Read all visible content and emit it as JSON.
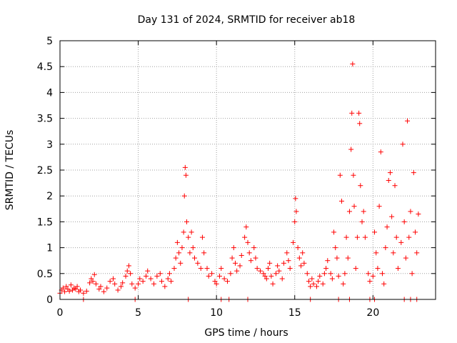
{
  "chart_data": {
    "type": "scatter",
    "title": "Day 131 of 2024, SRMTID for receiver ab18",
    "xlabel": "GPS time / hours",
    "ylabel": "SRMTID / TECUs",
    "xlim": [
      0,
      24
    ],
    "ylim": [
      0,
      5
    ],
    "xticks": [
      0,
      5,
      10,
      15,
      20
    ],
    "yticks": [
      0,
      0.5,
      1,
      1.5,
      2,
      2.5,
      3,
      3.5,
      4,
      4.5,
      5
    ],
    "grid": true,
    "marker": "plus",
    "color": "#ff0000",
    "series": [
      {
        "name": "SRMTID",
        "points": [
          [
            0.0,
            0.12
          ],
          [
            0.1,
            0.18
          ],
          [
            0.2,
            0.22
          ],
          [
            0.3,
            0.15
          ],
          [
            0.4,
            0.25
          ],
          [
            0.5,
            0.2
          ],
          [
            0.6,
            0.16
          ],
          [
            0.7,
            0.28
          ],
          [
            0.8,
            0.18
          ],
          [
            0.9,
            0.22
          ],
          [
            1.0,
            0.2
          ],
          [
            1.1,
            0.25
          ],
          [
            1.2,
            0.15
          ],
          [
            1.3,
            0.18
          ],
          [
            1.5,
            0.12
          ],
          [
            1.7,
            0.16
          ],
          [
            1.9,
            0.32
          ],
          [
            2.0,
            0.4
          ],
          [
            2.1,
            0.35
          ],
          [
            2.2,
            0.48
          ],
          [
            2.3,
            0.3
          ],
          [
            2.5,
            0.2
          ],
          [
            2.6,
            0.25
          ],
          [
            2.8,
            0.15
          ],
          [
            3.0,
            0.22
          ],
          [
            3.2,
            0.35
          ],
          [
            3.4,
            0.4
          ],
          [
            3.5,
            0.3
          ],
          [
            3.7,
            0.18
          ],
          [
            3.9,
            0.25
          ],
          [
            4.0,
            0.32
          ],
          [
            4.2,
            0.45
          ],
          [
            4.3,
            0.55
          ],
          [
            4.4,
            0.65
          ],
          [
            4.5,
            0.5
          ],
          [
            4.6,
            0.3
          ],
          [
            4.8,
            0.22
          ],
          [
            5.0,
            0.3
          ],
          [
            5.1,
            0.4
          ],
          [
            5.3,
            0.35
          ],
          [
            5.5,
            0.45
          ],
          [
            5.6,
            0.55
          ],
          [
            5.8,
            0.4
          ],
          [
            6.0,
            0.3
          ],
          [
            6.2,
            0.45
          ],
          [
            6.4,
            0.5
          ],
          [
            6.5,
            0.35
          ],
          [
            6.7,
            0.25
          ],
          [
            6.9,
            0.4
          ],
          [
            7.0,
            0.5
          ],
          [
            7.1,
            0.35
          ],
          [
            7.3,
            0.6
          ],
          [
            7.4,
            0.8
          ],
          [
            7.5,
            1.1
          ],
          [
            7.6,
            0.9
          ],
          [
            7.7,
            0.7
          ],
          [
            7.8,
            1.0
          ],
          [
            7.9,
            1.3
          ],
          [
            7.95,
            2.0
          ],
          [
            8.0,
            2.55
          ],
          [
            8.05,
            2.4
          ],
          [
            8.1,
            1.5
          ],
          [
            8.2,
            1.2
          ],
          [
            8.3,
            0.9
          ],
          [
            8.4,
            1.3
          ],
          [
            8.5,
            1.0
          ],
          [
            8.6,
            0.8
          ],
          [
            8.8,
            0.7
          ],
          [
            9.0,
            0.6
          ],
          [
            9.1,
            1.2
          ],
          [
            9.2,
            0.9
          ],
          [
            9.4,
            0.6
          ],
          [
            9.5,
            0.45
          ],
          [
            9.7,
            0.5
          ],
          [
            9.9,
            0.35
          ],
          [
            10.0,
            0.3
          ],
          [
            10.2,
            0.45
          ],
          [
            10.3,
            0.6
          ],
          [
            10.5,
            0.4
          ],
          [
            10.7,
            0.35
          ],
          [
            10.9,
            0.5
          ],
          [
            11.0,
            0.8
          ],
          [
            11.1,
            1.0
          ],
          [
            11.2,
            0.7
          ],
          [
            11.3,
            0.55
          ],
          [
            11.5,
            0.65
          ],
          [
            11.6,
            0.85
          ],
          [
            11.8,
            1.2
          ],
          [
            11.9,
            1.4
          ],
          [
            12.0,
            1.1
          ],
          [
            12.1,
            0.9
          ],
          [
            12.2,
            0.75
          ],
          [
            12.4,
            1.0
          ],
          [
            12.5,
            0.8
          ],
          [
            12.6,
            0.6
          ],
          [
            12.8,
            0.55
          ],
          [
            13.0,
            0.5
          ],
          [
            13.1,
            0.45
          ],
          [
            13.2,
            0.4
          ],
          [
            13.3,
            0.6
          ],
          [
            13.4,
            0.7
          ],
          [
            13.5,
            0.45
          ],
          [
            13.6,
            0.3
          ],
          [
            13.8,
            0.5
          ],
          [
            13.9,
            0.65
          ],
          [
            14.0,
            0.55
          ],
          [
            14.2,
            0.4
          ],
          [
            14.3,
            0.7
          ],
          [
            14.5,
            0.9
          ],
          [
            14.6,
            0.75
          ],
          [
            14.7,
            0.6
          ],
          [
            14.9,
            1.1
          ],
          [
            15.0,
            1.5
          ],
          [
            15.05,
            1.95
          ],
          [
            15.1,
            1.7
          ],
          [
            15.2,
            1.0
          ],
          [
            15.3,
            0.8
          ],
          [
            15.4,
            0.65
          ],
          [
            15.5,
            0.9
          ],
          [
            15.6,
            0.7
          ],
          [
            15.8,
            0.5
          ],
          [
            15.9,
            0.35
          ],
          [
            16.0,
            0.25
          ],
          [
            16.1,
            0.4
          ],
          [
            16.2,
            0.3
          ],
          [
            16.4,
            0.25
          ],
          [
            16.5,
            0.35
          ],
          [
            16.6,
            0.45
          ],
          [
            16.8,
            0.3
          ],
          [
            16.9,
            0.5
          ],
          [
            17.0,
            0.6
          ],
          [
            17.1,
            0.75
          ],
          [
            17.3,
            0.5
          ],
          [
            17.4,
            0.4
          ],
          [
            17.5,
            1.3
          ],
          [
            17.6,
            1.0
          ],
          [
            17.7,
            0.8
          ],
          [
            17.8,
            0.45
          ],
          [
            17.9,
            2.4
          ],
          [
            18.0,
            1.9
          ],
          [
            18.1,
            0.3
          ],
          [
            18.2,
            0.5
          ],
          [
            18.3,
            1.2
          ],
          [
            18.4,
            0.8
          ],
          [
            18.5,
            1.7
          ],
          [
            18.6,
            2.9
          ],
          [
            18.65,
            3.6
          ],
          [
            18.7,
            4.55
          ],
          [
            18.75,
            2.4
          ],
          [
            18.8,
            1.8
          ],
          [
            18.9,
            0.6
          ],
          [
            19.0,
            1.2
          ],
          [
            19.1,
            3.6
          ],
          [
            19.15,
            3.4
          ],
          [
            19.2,
            2.2
          ],
          [
            19.3,
            1.5
          ],
          [
            19.4,
            1.7
          ],
          [
            19.5,
            1.2
          ],
          [
            19.7,
            0.5
          ],
          [
            19.8,
            0.35
          ],
          [
            20.0,
            0.45
          ],
          [
            20.1,
            1.3
          ],
          [
            20.2,
            0.9
          ],
          [
            20.3,
            0.6
          ],
          [
            20.4,
            1.8
          ],
          [
            20.5,
            2.85
          ],
          [
            20.6,
            0.5
          ],
          [
            20.7,
            0.3
          ],
          [
            20.8,
            1.0
          ],
          [
            20.9,
            1.4
          ],
          [
            21.0,
            2.3
          ],
          [
            21.1,
            2.45
          ],
          [
            21.2,
            1.6
          ],
          [
            21.3,
            0.9
          ],
          [
            21.4,
            2.2
          ],
          [
            21.5,
            1.2
          ],
          [
            21.6,
            0.6
          ],
          [
            21.8,
            1.1
          ],
          [
            21.9,
            3.0
          ],
          [
            22.0,
            1.5
          ],
          [
            22.1,
            0.8
          ],
          [
            22.2,
            3.45
          ],
          [
            22.3,
            1.2
          ],
          [
            22.4,
            1.7
          ],
          [
            22.5,
            0.5
          ],
          [
            22.6,
            2.45
          ],
          [
            22.7,
            1.3
          ],
          [
            22.8,
            0.9
          ],
          [
            22.9,
            1.65
          ],
          [
            1.5,
            0.0
          ],
          [
            4.8,
            0.0
          ],
          [
            8.2,
            0.0
          ],
          [
            10.3,
            0.0
          ],
          [
            10.8,
            0.0
          ],
          [
            12.0,
            0.0
          ],
          [
            16.0,
            0.0
          ],
          [
            17.8,
            0.0
          ],
          [
            18.5,
            0.0
          ],
          [
            19.8,
            0.0
          ],
          [
            20.1,
            0.0
          ],
          [
            22.0,
            0.0
          ],
          [
            22.4,
            0.0
          ],
          [
            22.8,
            0.0
          ]
        ]
      }
    ]
  }
}
